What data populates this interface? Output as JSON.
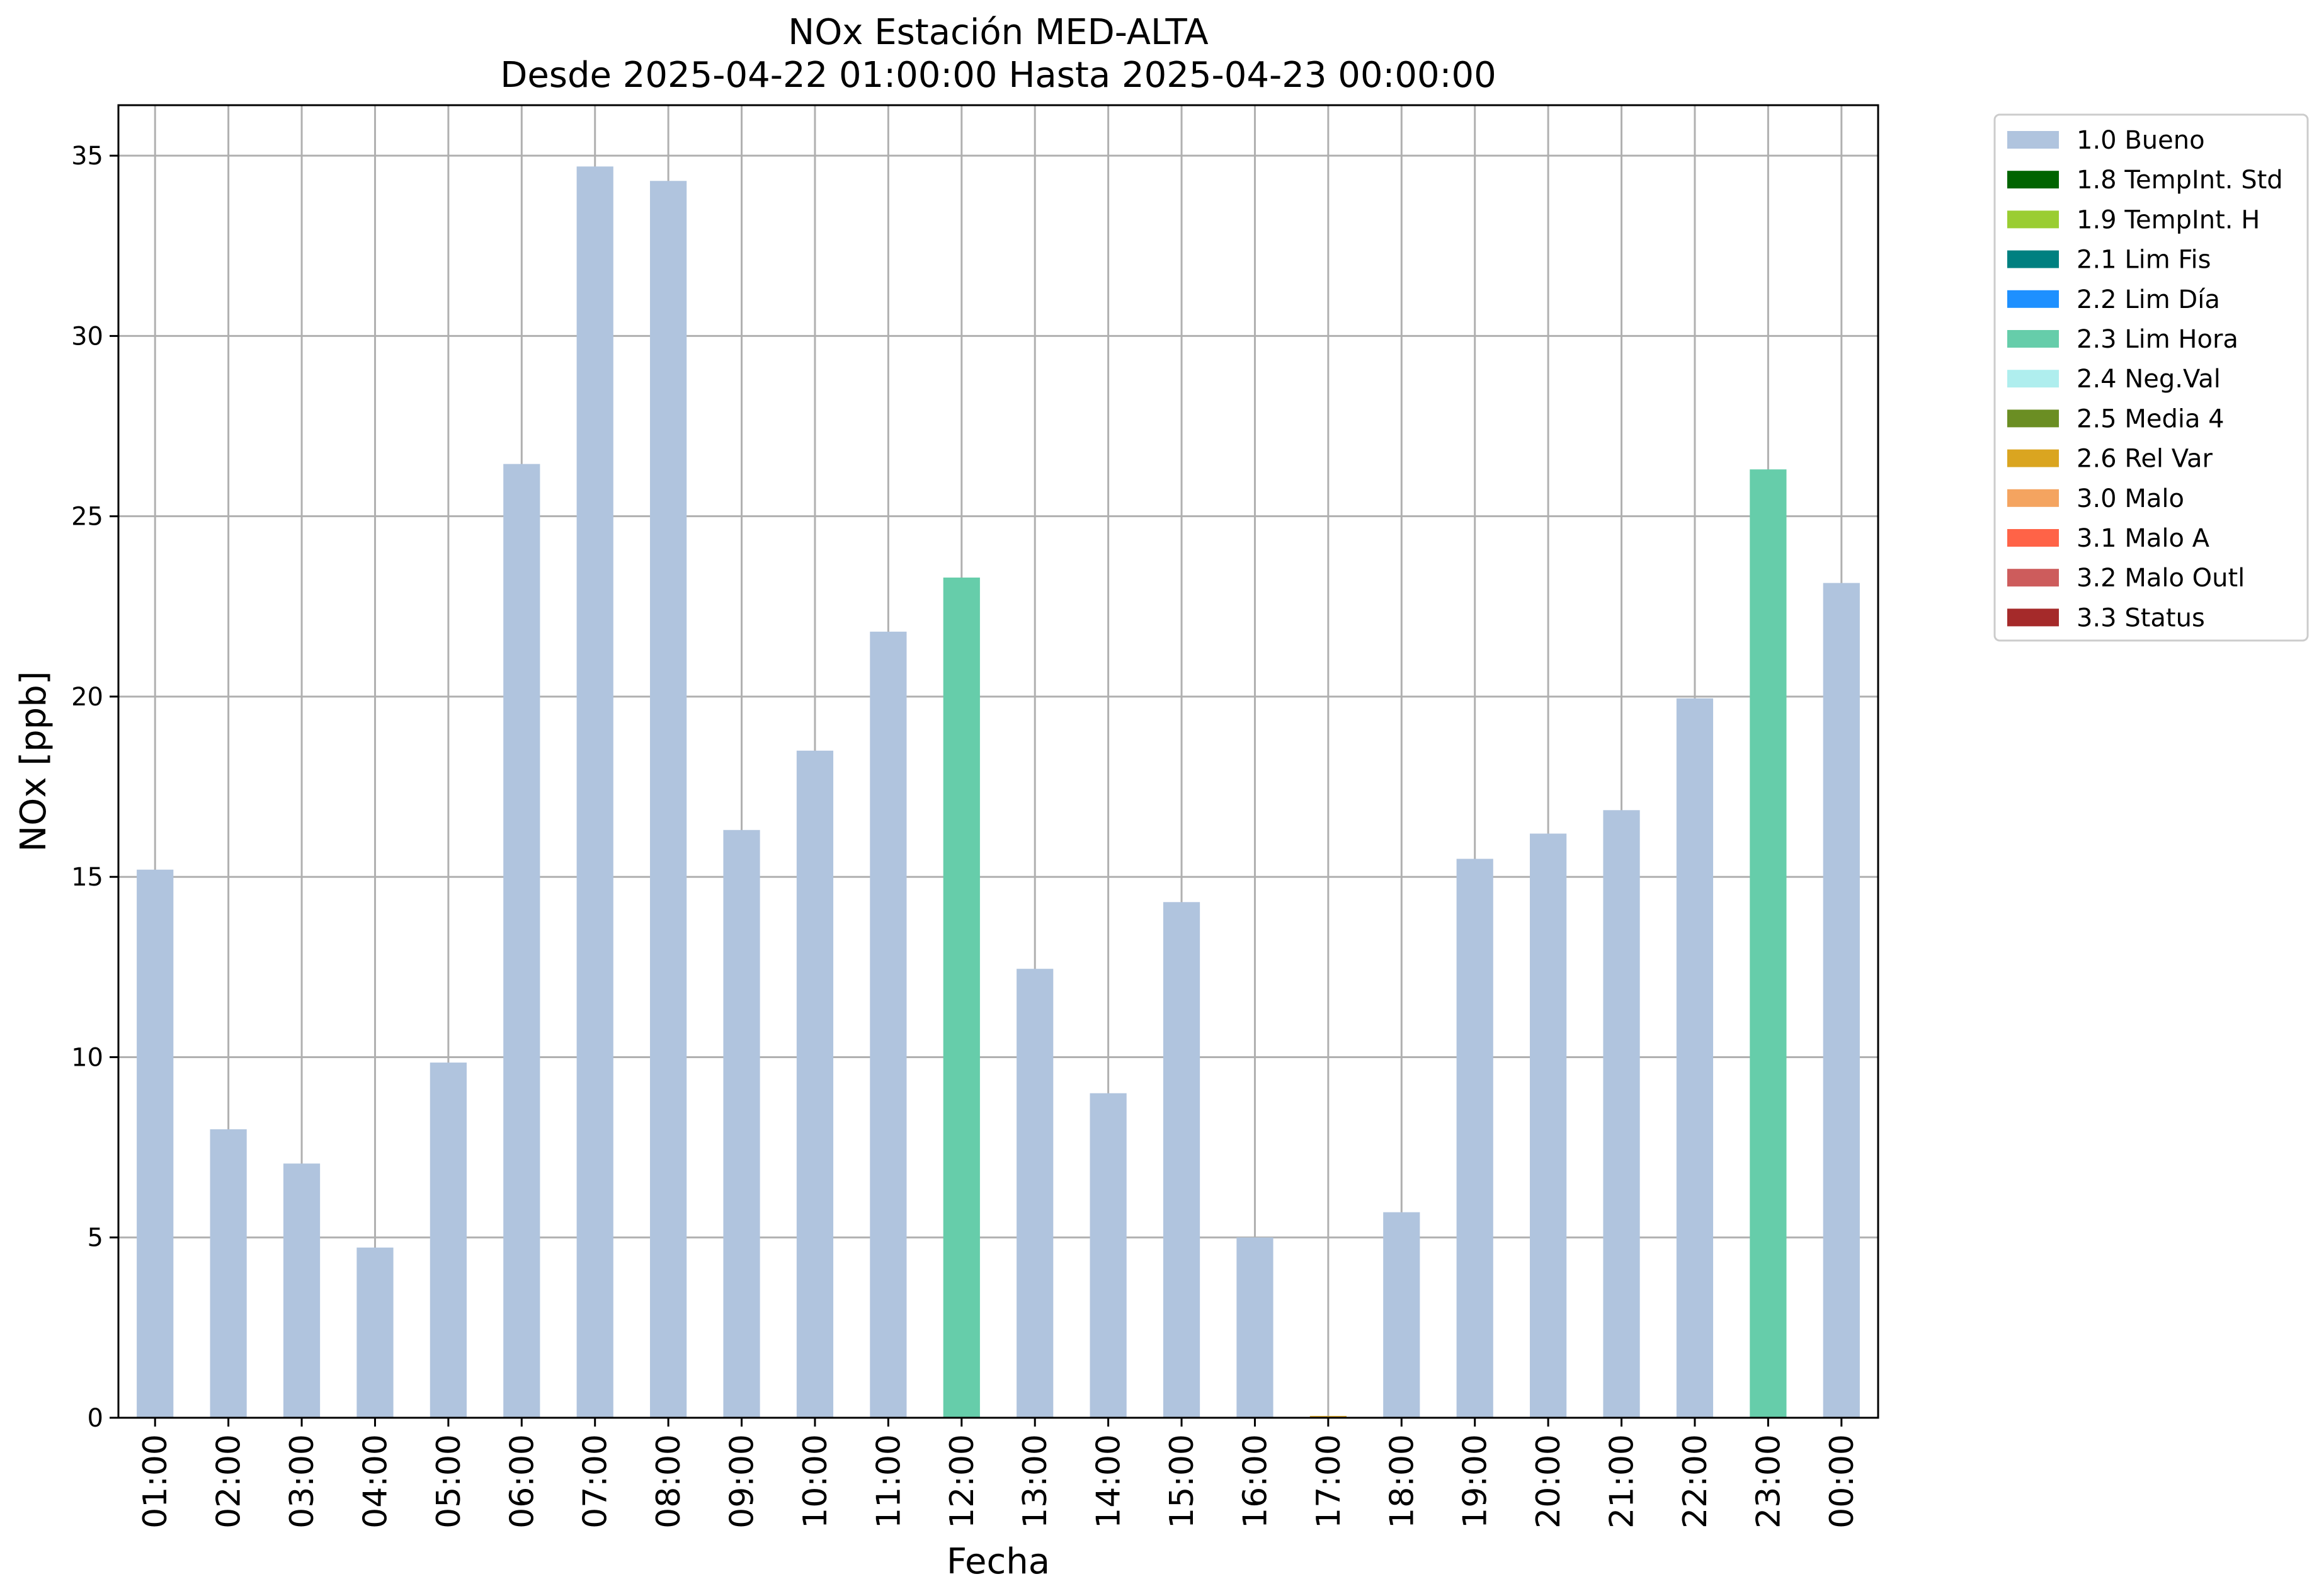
{
  "chart_data": {
    "type": "bar",
    "title": "NOx Estación MED-ALTA",
    "subtitle": "Desde 2025-04-22 01:00:00 Hasta 2025-04-23 00:00:00",
    "xlabel": "Fecha",
    "ylabel": "NOx [ppb]",
    "ylim": [
      0,
      36.4
    ],
    "yticks": [
      0,
      5,
      10,
      15,
      20,
      25,
      30,
      35
    ],
    "grid": true,
    "legend_position": "outside-top-right",
    "categories": [
      "01:00",
      "02:00",
      "03:00",
      "04:00",
      "05:00",
      "06:00",
      "07:00",
      "08:00",
      "09:00",
      "10:00",
      "11:00",
      "12:00",
      "13:00",
      "14:00",
      "15:00",
      "16:00",
      "17:00",
      "18:00",
      "19:00",
      "20:00",
      "21:00",
      "22:00",
      "23:00",
      "00:00"
    ],
    "values": [
      15.2,
      8.0,
      7.05,
      4.72,
      9.85,
      26.45,
      34.7,
      34.3,
      16.3,
      18.5,
      21.8,
      23.3,
      12.45,
      9.0,
      14.3,
      5.0,
      0.05,
      5.7,
      15.5,
      16.2,
      16.85,
      19.95,
      26.3,
      23.15
    ],
    "flags": [
      "1.0 Bueno",
      "1.0 Bueno",
      "1.0 Bueno",
      "1.0 Bueno",
      "1.0 Bueno",
      "1.0 Bueno",
      "1.0 Bueno",
      "1.0 Bueno",
      "1.0 Bueno",
      "1.0 Bueno",
      "1.0 Bueno",
      "2.3 Lim Hora",
      "1.0 Bueno",
      "1.0 Bueno",
      "1.0 Bueno",
      "1.0 Bueno",
      "2.6 Rel Var",
      "1.0 Bueno",
      "1.0 Bueno",
      "1.0 Bueno",
      "1.0 Bueno",
      "1.0 Bueno",
      "2.3 Lim Hora",
      "1.0 Bueno"
    ],
    "legend": [
      {
        "label": "1.0 Bueno",
        "color": "#b0c4de"
      },
      {
        "label": "1.8 TempInt. Std",
        "color": "#006400"
      },
      {
        "label": "1.9 TempInt. H",
        "color": "#9acd32"
      },
      {
        "label": "2.1 Lim Fis",
        "color": "#008080"
      },
      {
        "label": "2.2 Lim Día",
        "color": "#1e90ff"
      },
      {
        "label": "2.3 Lim Hora",
        "color": "#66cdaa"
      },
      {
        "label": "2.4 Neg.Val",
        "color": "#afeeee"
      },
      {
        "label": "2.5 Media 4",
        "color": "#6b8e23"
      },
      {
        "label": "2.6 Rel Var",
        "color": "#daa520"
      },
      {
        "label": "3.0 Malo",
        "color": "#f4a460"
      },
      {
        "label": "3.1 Malo A",
        "color": "#ff6347"
      },
      {
        "label": "3.2 Malo Outl",
        "color": "#cd5c5c"
      },
      {
        "label": "3.3 Status",
        "color": "#a52a2a"
      }
    ]
  }
}
